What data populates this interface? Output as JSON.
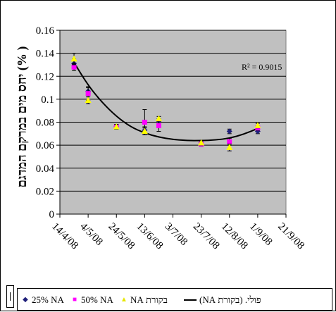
{
  "chart_data": {
    "type": "scatter",
    "ylabel": "( %) יחס מים במרקם המדגם",
    "ylim": [
      0,
      0.16
    ],
    "yticks": [
      "0",
      "0.02",
      "0.04",
      "0.06",
      "0.08",
      "0.1",
      "0.12",
      "0.14",
      "0.16"
    ],
    "ytick_values": [
      0,
      0.02,
      0.04,
      0.06,
      0.08,
      0.1,
      0.12,
      0.14,
      0.16
    ],
    "xticks": [
      "14/4/08",
      "4/5/08",
      "24/5/08",
      "13/6/08",
      "3/7/08",
      "23/7/08",
      "12/8/08",
      "1/9/08",
      "21/9/08"
    ],
    "xtick_dates": [
      "2008-04-14",
      "2008-05-04",
      "2008-05-24",
      "2008-06-13",
      "2008-07-03",
      "2008-07-23",
      "2008-08-12",
      "2008-09-01",
      "2008-09-21"
    ],
    "grid": "horizontal",
    "annotation": "R² = 0.9015",
    "series": [
      {
        "name": "25% NA",
        "marker": "diamond",
        "color": "#1f1f7a",
        "points": [
          {
            "x": "2008-04-24",
            "y": 0.131,
            "err": 0.004
          },
          {
            "x": "2008-05-04",
            "y": 0.107,
            "err": 0.003
          },
          {
            "x": "2008-05-24",
            "y": 0.076,
            "err": 0.002
          },
          {
            "x": "2008-06-13",
            "y": 0.073,
            "err": 0.003
          },
          {
            "x": "2008-06-23",
            "y": 0.081,
            "err": 0.002
          },
          {
            "x": "2008-07-23",
            "y": 0.062,
            "err": 0.002
          },
          {
            "x": "2008-08-12",
            "y": 0.072,
            "err": 0.002
          },
          {
            "x": "2008-09-01",
            "y": 0.072,
            "err": 0.002
          }
        ]
      },
      {
        "name": "50% NA",
        "marker": "square",
        "color": "#ff00ff",
        "points": [
          {
            "x": "2008-04-24",
            "y": 0.128,
            "err": 0.003
          },
          {
            "x": "2008-05-04",
            "y": 0.105,
            "err": 0.006
          },
          {
            "x": "2008-05-24",
            "y": 0.076,
            "err": 0.002
          },
          {
            "x": "2008-06-13",
            "y": 0.08,
            "err": 0.011
          },
          {
            "x": "2008-06-23",
            "y": 0.077,
            "err": 0.005
          },
          {
            "x": "2008-07-23",
            "y": 0.061,
            "err": 0.002
          },
          {
            "x": "2008-08-12",
            "y": 0.063,
            "err": 0.003
          },
          {
            "x": "2008-09-01",
            "y": 0.075,
            "err": 0.002
          }
        ]
      },
      {
        "name": "בקורת NA",
        "marker": "triangle",
        "color": "#ffff00",
        "points": [
          {
            "x": "2008-04-24",
            "y": 0.135,
            "err": 0.005
          },
          {
            "x": "2008-05-04",
            "y": 0.099,
            "err": 0.003
          },
          {
            "x": "2008-05-24",
            "y": 0.076,
            "err": 0.002
          },
          {
            "x": "2008-06-13",
            "y": 0.072,
            "err": 0.003
          },
          {
            "x": "2008-06-23",
            "y": 0.083,
            "err": 0.002
          },
          {
            "x": "2008-07-23",
            "y": 0.062,
            "err": 0.002
          },
          {
            "x": "2008-08-12",
            "y": 0.058,
            "err": 0.003
          },
          {
            "x": "2008-09-01",
            "y": 0.077,
            "err": 0.002
          }
        ]
      }
    ],
    "trendline": {
      "name": "פולי. (בקורת NA)",
      "type": "polynomial",
      "color": "#000000",
      "points": [
        {
          "x": "2008-04-24",
          "y": 0.132
        },
        {
          "x": "2008-05-04",
          "y": 0.112
        },
        {
          "x": "2008-05-14",
          "y": 0.097
        },
        {
          "x": "2008-05-24",
          "y": 0.085
        },
        {
          "x": "2008-06-03",
          "y": 0.076
        },
        {
          "x": "2008-06-13",
          "y": 0.0705
        },
        {
          "x": "2008-06-23",
          "y": 0.067
        },
        {
          "x": "2008-07-03",
          "y": 0.065
        },
        {
          "x": "2008-07-13",
          "y": 0.064
        },
        {
          "x": "2008-07-23",
          "y": 0.064
        },
        {
          "x": "2008-08-02",
          "y": 0.0645
        },
        {
          "x": "2008-08-12",
          "y": 0.066
        },
        {
          "x": "2008-08-22",
          "y": 0.0695
        },
        {
          "x": "2008-09-01",
          "y": 0.0745
        }
      ]
    },
    "legend": {
      "placement": "bottom",
      "entries": [
        "25% NA",
        "50% NA",
        "בקורת NA",
        "פולי. (בקורת NA)"
      ]
    }
  }
}
